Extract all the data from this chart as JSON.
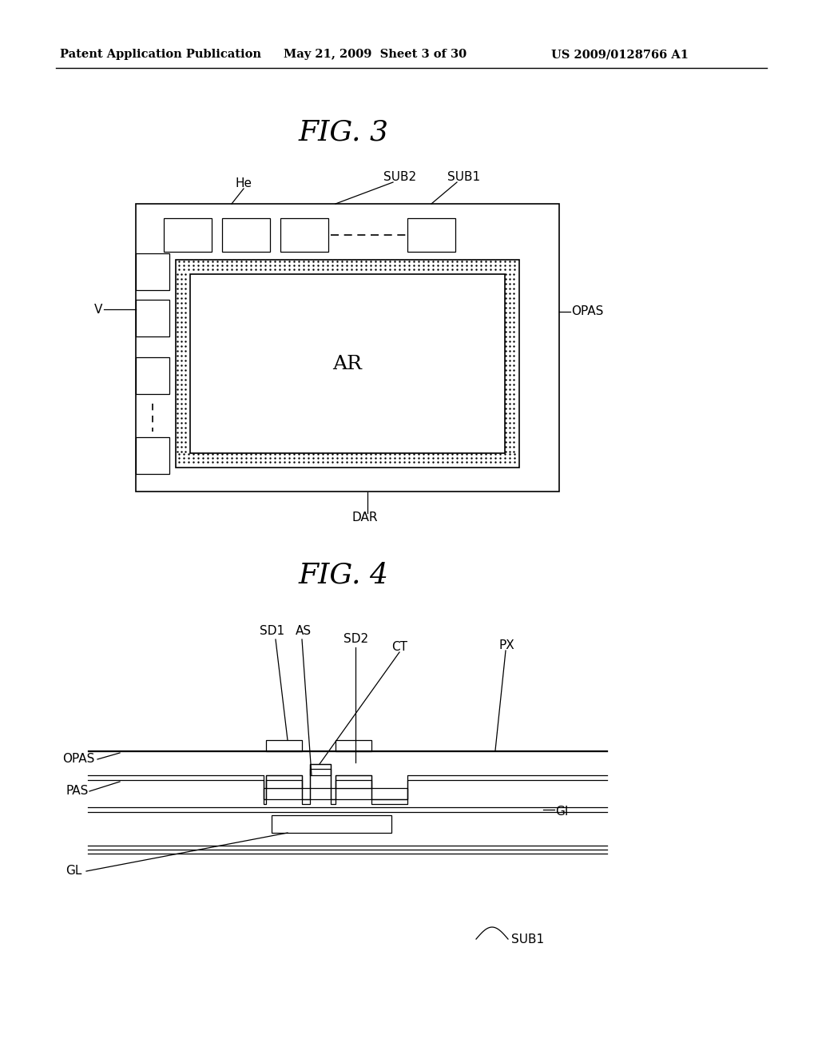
{
  "background_color": "#ffffff",
  "header_left": "Patent Application Publication",
  "header_center": "May 21, 2009  Sheet 3 of 30",
  "header_right": "US 2009/0128766 A1",
  "fig3_title": "FIG. 3",
  "fig4_title": "FIG. 4"
}
